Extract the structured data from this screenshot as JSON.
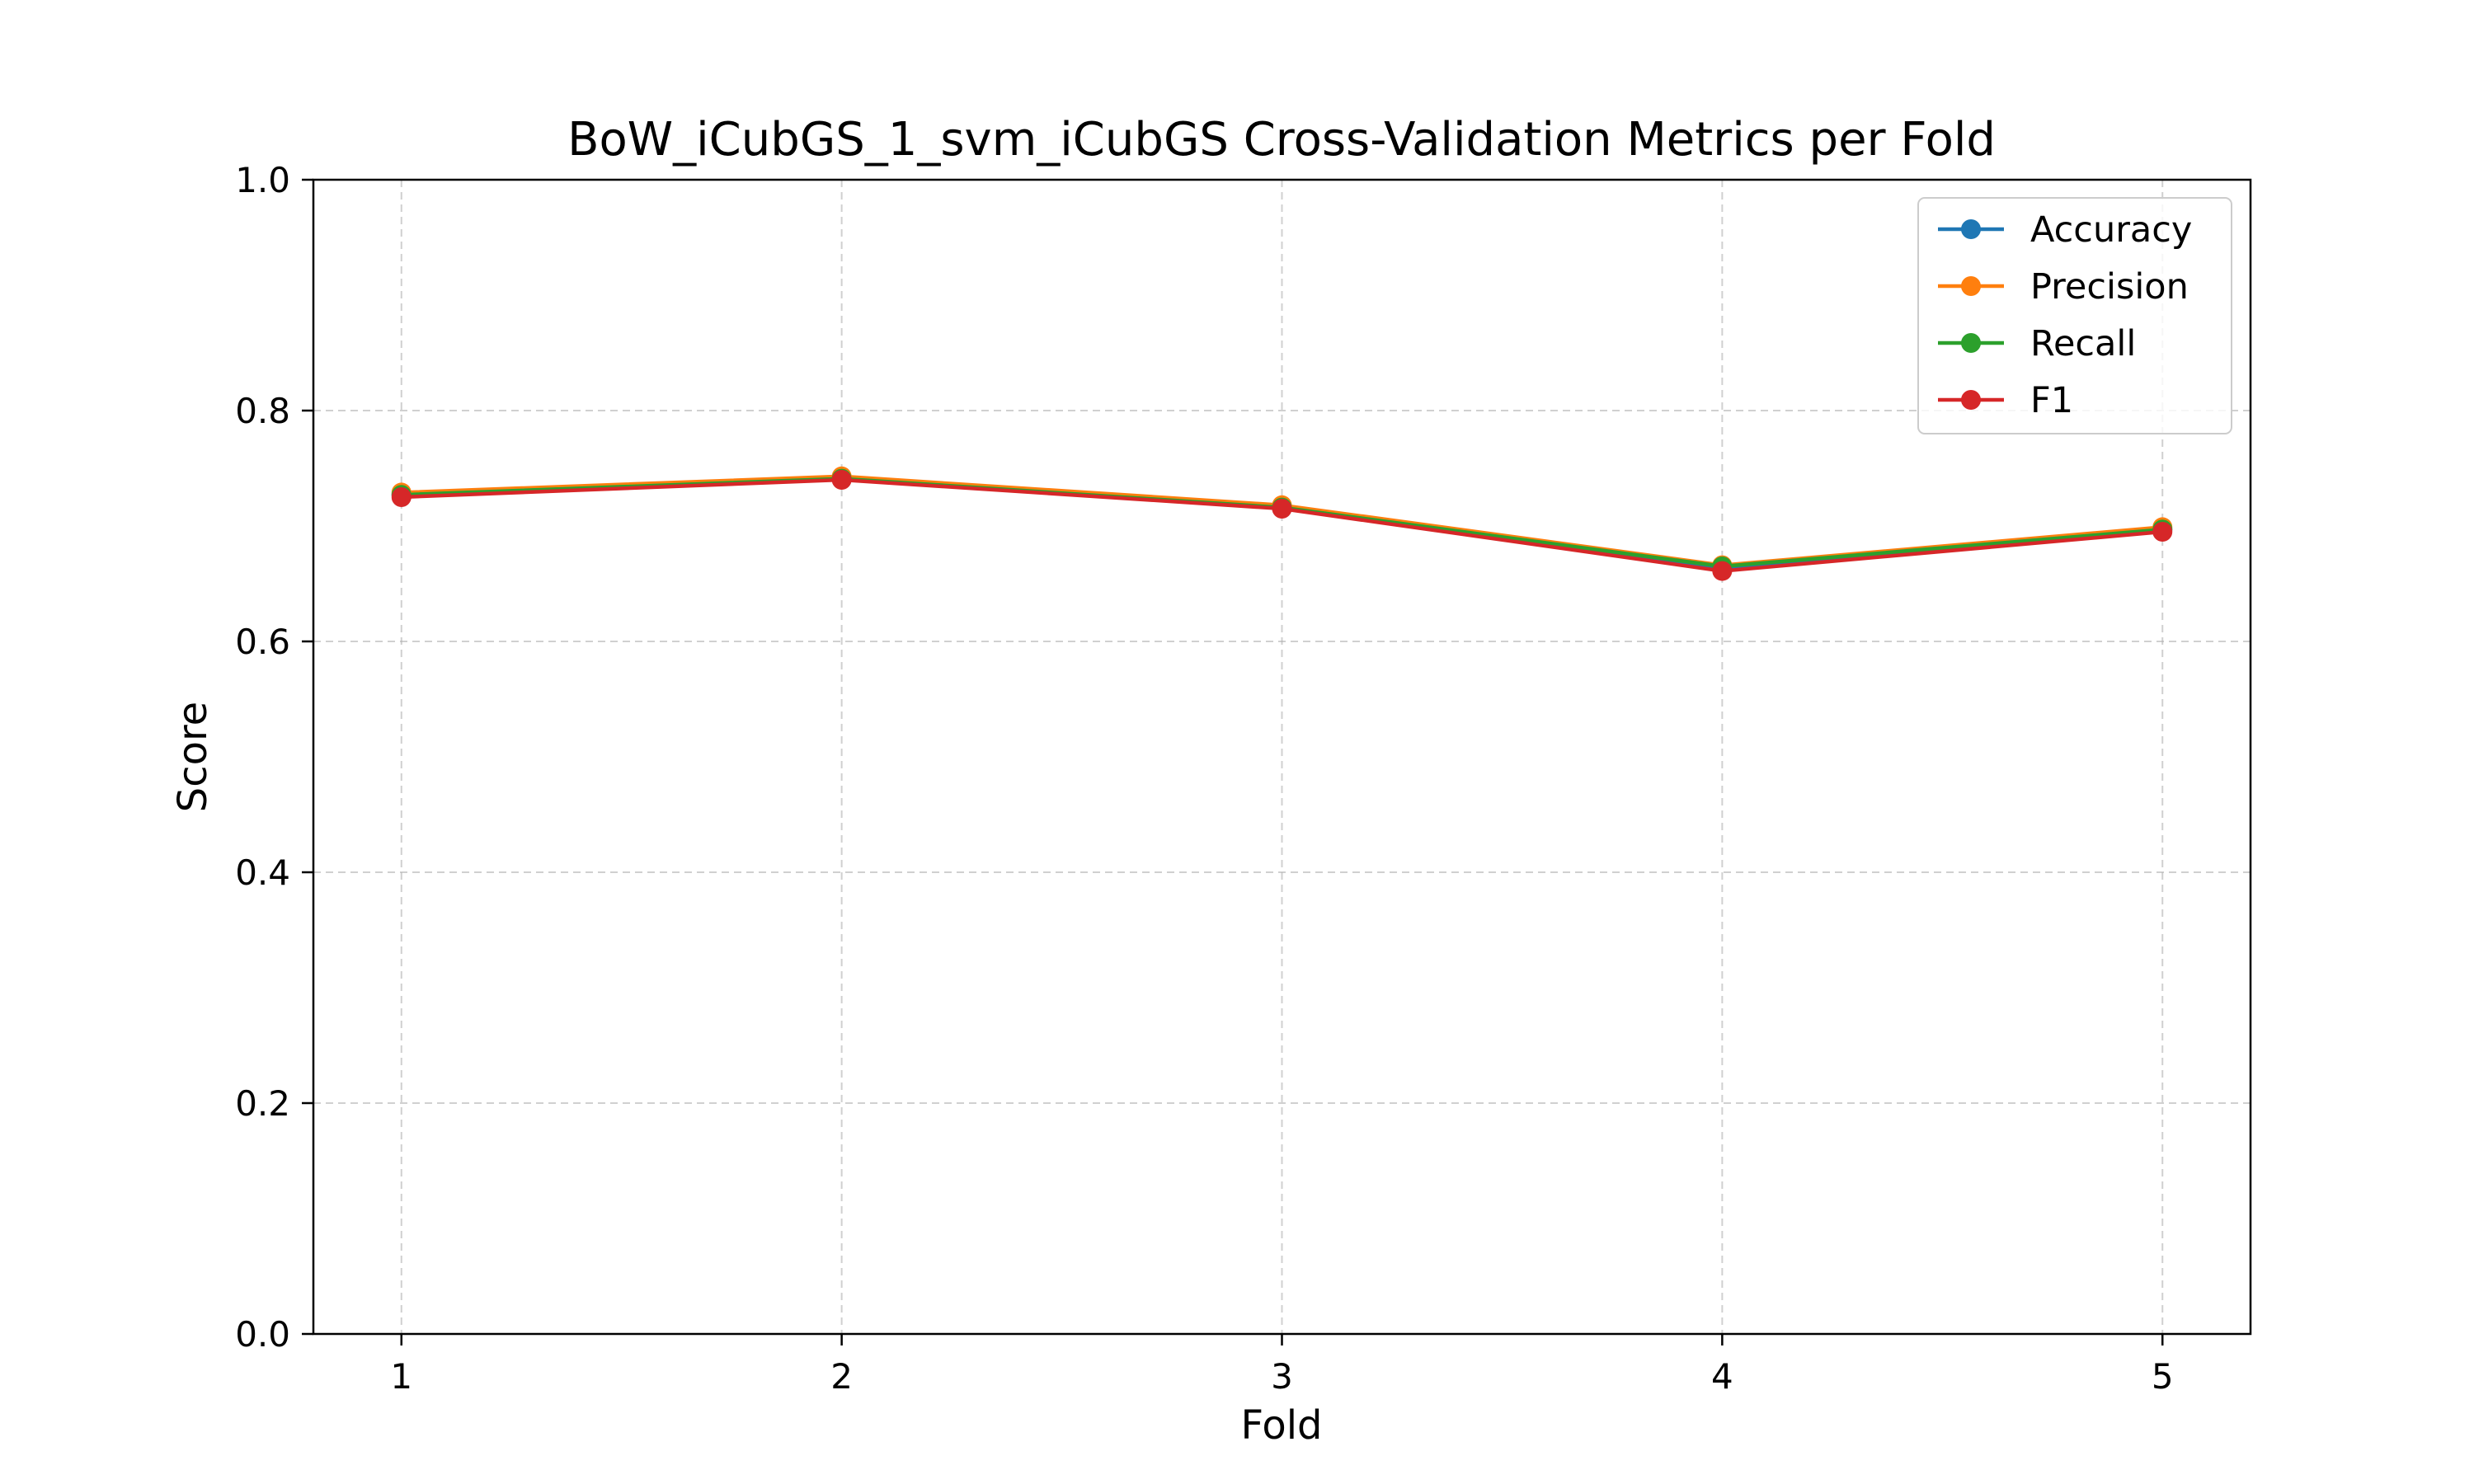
{
  "chart_data": {
    "type": "line",
    "title": "BoW_iCubGS_1_svm_iCubGS Cross-Validation Metrics per Fold",
    "xlabel": "Fold",
    "ylabel": "Score",
    "x": [
      1,
      2,
      3,
      4,
      5
    ],
    "xlim": [
      0.8,
      5.2
    ],
    "ylim": [
      0.0,
      1.0
    ],
    "x_ticks": [
      "1",
      "2",
      "3",
      "4",
      "5"
    ],
    "y_ticks": [
      "0.0",
      "0.2",
      "0.4",
      "0.6",
      "0.8",
      "1.0"
    ],
    "grid": true,
    "legend_position": "top-right",
    "series": [
      {
        "name": "Accuracy",
        "color": "#1f77b4",
        "values": [
          0.727,
          0.741,
          0.716,
          0.664,
          0.697
        ]
      },
      {
        "name": "Precision",
        "color": "#ff7f0e",
        "values": [
          0.729,
          0.743,
          0.718,
          0.666,
          0.699
        ]
      },
      {
        "name": "Recall",
        "color": "#2ca02c",
        "values": [
          0.727,
          0.741,
          0.716,
          0.665,
          0.697
        ]
      },
      {
        "name": "F1",
        "color": "#d62728",
        "values": [
          0.725,
          0.74,
          0.715,
          0.661,
          0.695
        ]
      }
    ]
  }
}
